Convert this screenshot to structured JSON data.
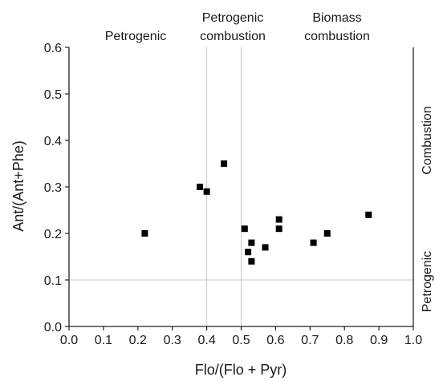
{
  "chart_data": {
    "type": "scatter",
    "xlabel": "Flo/(Flo + Pyr)",
    "ylabel": "Ant/(Ant+Phe)",
    "xlim": [
      0.0,
      1.0
    ],
    "ylim": [
      0.0,
      0.6
    ],
    "x_ticks": [
      "0.0",
      "0.1",
      "0.2",
      "0.3",
      "0.4",
      "0.5",
      "0.6",
      "0.7",
      "0.8",
      "0.9",
      "1.0"
    ],
    "y_ticks": [
      "0.0",
      "0.1",
      "0.2",
      "0.3",
      "0.4",
      "0.5",
      "0.6"
    ],
    "grid": false,
    "vertical_reference_lines": [
      0.4,
      0.5
    ],
    "horizontal_reference_lines": [
      0.1
    ],
    "top_regions": [
      {
        "label_lines": [
          "Petrogenic"
        ],
        "x_range": [
          0.0,
          0.4
        ]
      },
      {
        "label_lines": [
          "Petrogenic",
          "combustion"
        ],
        "x_range": [
          0.4,
          0.5
        ]
      },
      {
        "label_lines": [
          "Biomass",
          "combustion"
        ],
        "x_range": [
          0.5,
          1.0
        ]
      }
    ],
    "right_regions": [
      {
        "label": "Combustion",
        "y_range": [
          0.1,
          0.6
        ]
      },
      {
        "label": "Petrogenic",
        "y_range": [
          0.0,
          0.1
        ]
      }
    ],
    "series": [
      {
        "marker": "square",
        "color": "#000000",
        "points": [
          {
            "x": 0.22,
            "y": 0.2
          },
          {
            "x": 0.38,
            "y": 0.3
          },
          {
            "x": 0.4,
            "y": 0.29
          },
          {
            "x": 0.45,
            "y": 0.35
          },
          {
            "x": 0.51,
            "y": 0.21
          },
          {
            "x": 0.52,
            "y": 0.16
          },
          {
            "x": 0.53,
            "y": 0.18
          },
          {
            "x": 0.53,
            "y": 0.14
          },
          {
            "x": 0.57,
            "y": 0.17
          },
          {
            "x": 0.61,
            "y": 0.23
          },
          {
            "x": 0.61,
            "y": 0.21
          },
          {
            "x": 0.71,
            "y": 0.18
          },
          {
            "x": 0.75,
            "y": 0.2
          },
          {
            "x": 0.87,
            "y": 0.24
          }
        ]
      }
    ]
  }
}
